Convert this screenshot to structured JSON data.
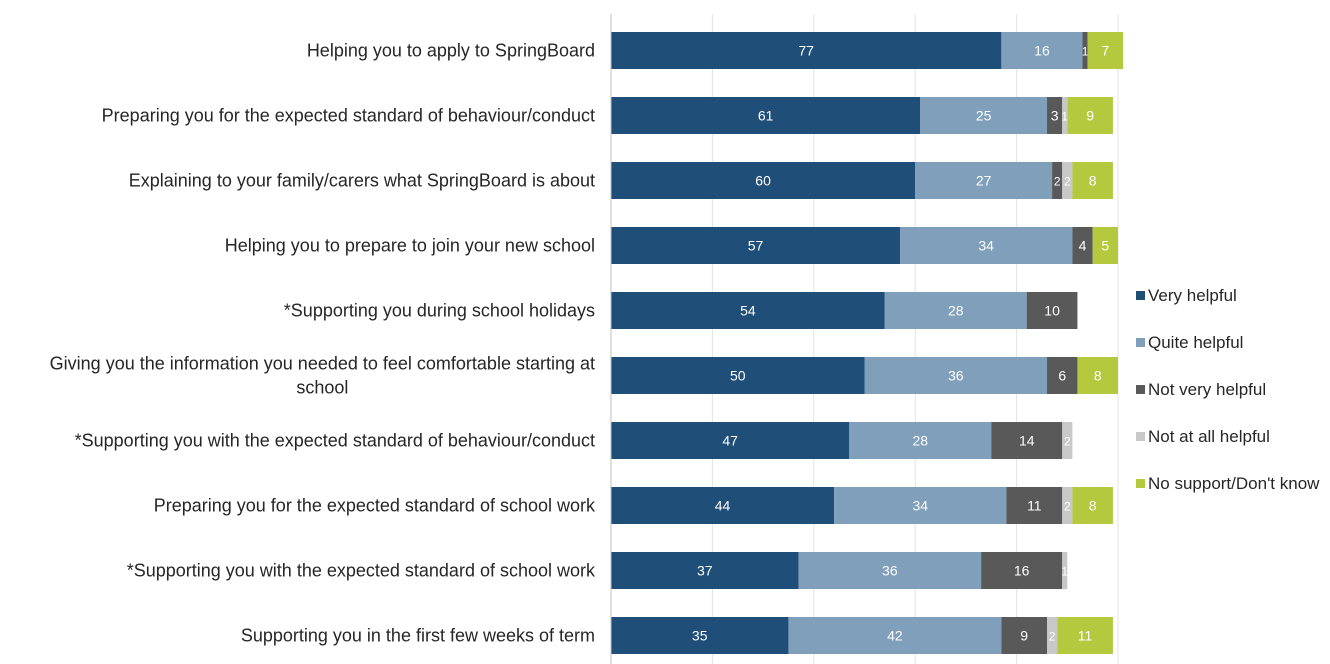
{
  "chart_data": {
    "type": "bar",
    "orientation": "horizontal",
    "stacked": true,
    "title": "",
    "xlabel": "",
    "ylabel": "",
    "xlim": [
      0,
      100
    ],
    "grid": true,
    "legend_position": "right",
    "categories": [
      "Helping you to apply to SpringBoard",
      "Preparing you for the expected standard of behaviour/conduct",
      "Explaining to your family/carers what SpringBoard is about",
      "Helping you to prepare to join your new school",
      "*Supporting you during school holidays",
      "Giving you the information you needed to feel comfortable starting at school",
      "*Supporting you with the expected standard of behaviour/conduct",
      "Preparing you for the expected standard of school work",
      "*Supporting you with the expected standard of school work",
      "Supporting you in the first few weeks of term"
    ],
    "series": [
      {
        "name": "Very helpful",
        "color": "#1f4e79",
        "values": [
          77,
          61,
          60,
          57,
          54,
          50,
          47,
          44,
          37,
          35
        ]
      },
      {
        "name": "Quite helpful",
        "color": "#7f9fba",
        "values": [
          16,
          25,
          27,
          34,
          28,
          36,
          28,
          34,
          36,
          42
        ]
      },
      {
        "name": "Not very helpful",
        "color": "#595959",
        "values": [
          1,
          3,
          2,
          4,
          10,
          6,
          14,
          11,
          16,
          9
        ]
      },
      {
        "name": "Not at all helpful",
        "color": "#c8c8c8",
        "values": [
          0,
          1,
          2,
          0,
          0,
          0,
          2,
          2,
          1,
          2
        ]
      },
      {
        "name": "No support/Don't know",
        "color": "#b5c93f",
        "values": [
          7,
          9,
          8,
          5,
          0,
          8,
          0,
          8,
          0,
          11
        ]
      }
    ]
  }
}
